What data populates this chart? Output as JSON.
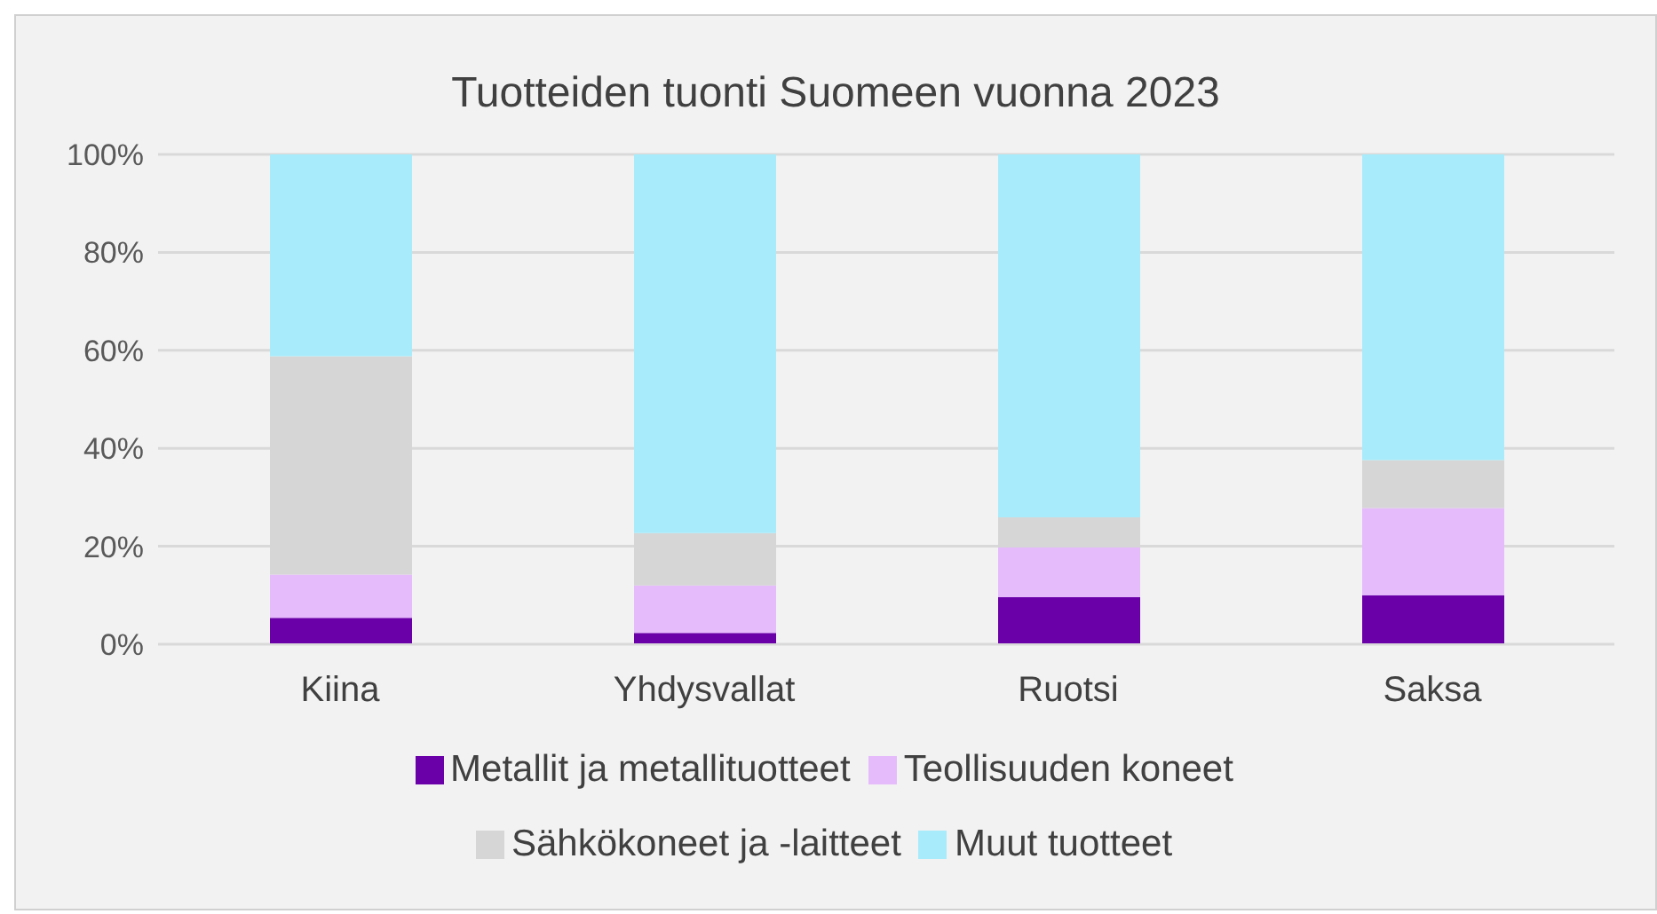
{
  "chart_data": {
    "type": "bar",
    "stacked": true,
    "title": "Tuotteiden tuonti Suomeen vuonna 2023",
    "categories": [
      "Kiina",
      "Yhdysvallat",
      "Ruotsi",
      "Saksa"
    ],
    "series": [
      {
        "name": "Metallit ja metallituotteet",
        "color": "#6a00a8",
        "values": [
          5.4,
          2.3,
          9.6,
          10.0
        ]
      },
      {
        "name": "Teollisuuden koneet",
        "color": "#e5bbfc",
        "values": [
          8.8,
          9.7,
          10.2,
          17.8
        ]
      },
      {
        "name": "Sähkökoneet ja -laitteet",
        "color": "#d6d6d6",
        "values": [
          44.6,
          10.7,
          6.1,
          9.8
        ]
      },
      {
        "name": "Muut tuotteet",
        "color": "#a8ecfc",
        "values": [
          41.2,
          77.3,
          74.1,
          62.4
        ]
      }
    ],
    "ylim": [
      0,
      100
    ],
    "yticks": [
      {
        "value": 0,
        "label": "0%"
      },
      {
        "value": 20,
        "label": "20%"
      },
      {
        "value": 40,
        "label": "40%"
      },
      {
        "value": 60,
        "label": "60%"
      },
      {
        "value": 80,
        "label": "80%"
      },
      {
        "value": 100,
        "label": "100%"
      }
    ],
    "grid": "y",
    "legend": "bottom"
  }
}
